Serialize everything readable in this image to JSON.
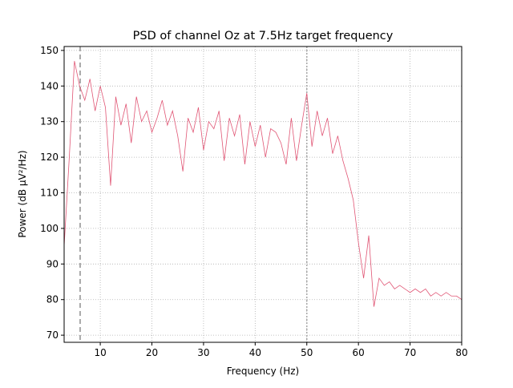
{
  "chart_data": {
    "type": "line",
    "title": "PSD of channel Oz at 7.5Hz target frequency",
    "x_label": "Frequency (Hz)",
    "y_label": "Power (dB µV²/Hz)",
    "x": [
      3,
      4,
      5,
      6,
      7,
      8,
      9,
      10,
      11,
      12,
      13,
      14,
      15,
      16,
      17,
      18,
      19,
      20,
      21,
      22,
      23,
      24,
      25,
      26,
      27,
      28,
      29,
      30,
      31,
      32,
      33,
      34,
      35,
      36,
      37,
      38,
      39,
      40,
      41,
      42,
      43,
      44,
      45,
      46,
      47,
      48,
      49,
      50,
      51,
      52,
      53,
      54,
      55,
      56,
      57,
      58,
      59,
      60,
      61,
      62,
      63,
      64,
      65,
      66,
      67,
      68,
      69,
      70,
      71,
      72,
      73,
      74,
      75,
      76,
      77,
      78,
      79,
      80
    ],
    "series": [
      {
        "color": "#e05574",
        "values": [
          95,
          120,
          147,
          140,
          136,
          142,
          133,
          140,
          134,
          112,
          137,
          129,
          135,
          124,
          137,
          130,
          133,
          127,
          131,
          136,
          129,
          133,
          126,
          116,
          131,
          127,
          134,
          122,
          130,
          128,
          133,
          119,
          131,
          126,
          132,
          118,
          130,
          123,
          129,
          120,
          128,
          127,
          124,
          118,
          131,
          119,
          129,
          138,
          123,
          133,
          126,
          131,
          121,
          126,
          119,
          114,
          108,
          96,
          86,
          98,
          78,
          86,
          84,
          85,
          83,
          84,
          83,
          82,
          83,
          82,
          83,
          81,
          82,
          81,
          82,
          81,
          81,
          80
        ]
      }
    ],
    "vlines": [
      {
        "x": 6.1,
        "style": "dashed"
      },
      {
        "x": 50,
        "style": "dotted"
      }
    ],
    "xlim": [
      3,
      80
    ],
    "ylim": [
      68,
      151.1
    ],
    "xticks": [
      10,
      20,
      30,
      40,
      50,
      60,
      70,
      80
    ],
    "yticks": [
      70,
      80,
      90,
      100,
      110,
      120,
      130,
      140,
      150
    ],
    "grid": true
  }
}
